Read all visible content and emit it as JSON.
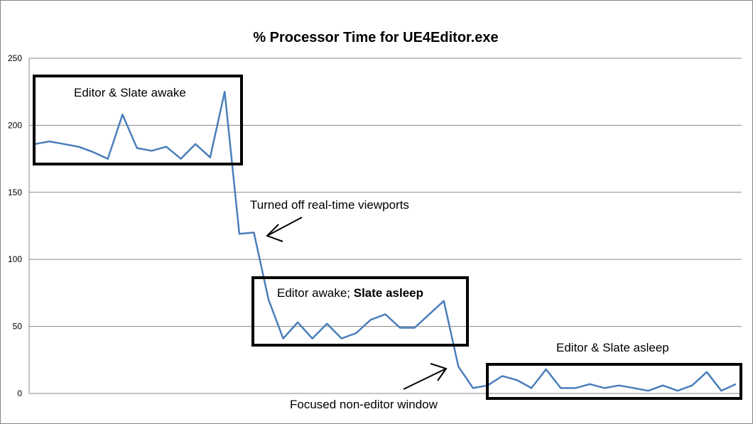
{
  "chart_data": {
    "type": "line",
    "title": "% Processor Time for UE4Editor.exe",
    "xlabel": "",
    "ylabel": "",
    "ylim": [
      0,
      250
    ],
    "yticks": [
      0,
      50,
      100,
      150,
      200,
      250
    ],
    "grid": true,
    "legend": "none",
    "series": [
      {
        "color": "#4a7ebb",
        "values": [
          186,
          188,
          186,
          184,
          180,
          175,
          208,
          183,
          181,
          184,
          175,
          186,
          176,
          225,
          119,
          120,
          70,
          41,
          53,
          41,
          52,
          41,
          45,
          55,
          59,
          49,
          49,
          59,
          69,
          20,
          4,
          6,
          13,
          10,
          4,
          18,
          4,
          4,
          7,
          4,
          6,
          4,
          2,
          6,
          2,
          6,
          16,
          2,
          7
        ]
      }
    ],
    "annotations": [
      {
        "id": "awake",
        "text": "Editor & Slate awake"
      },
      {
        "id": "viewports",
        "text": "Turned off real-time viewports"
      },
      {
        "id": "editor_awake",
        "text": "Editor awake; ",
        "bold_text": "Slate asleep"
      },
      {
        "id": "asleep",
        "text": "Editor & Slate asleep"
      },
      {
        "id": "focused",
        "text": "Focused non-editor window"
      }
    ]
  }
}
